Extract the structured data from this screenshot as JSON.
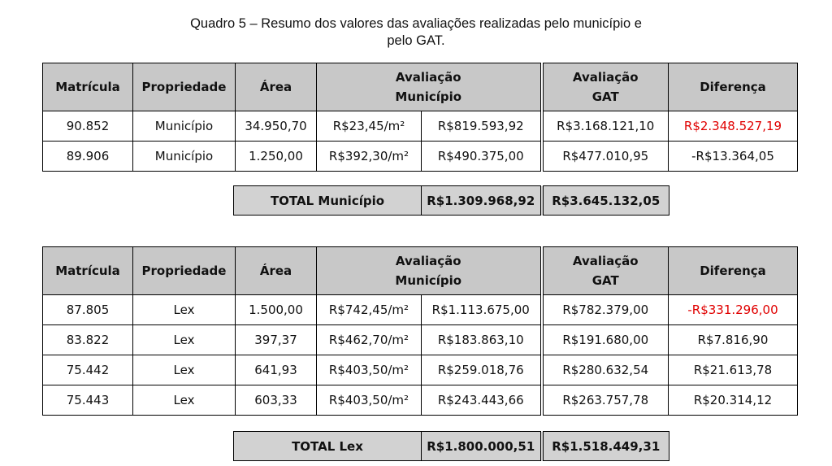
{
  "caption": {
    "line1": "Quadro 5 – Resumo dos valores das avaliações realizadas pelo município e",
    "line2": "pelo GAT."
  },
  "headers": {
    "matricula": "Matrícula",
    "propriedade": "Propriedade",
    "area": "Área",
    "aval_mun_1": "Avaliação",
    "aval_mun_2": "Município",
    "aval_gat_1": "Avaliação",
    "aval_gat_2": "GAT",
    "diferenca": "Diferença"
  },
  "table1": {
    "rows": [
      {
        "matricula": "90.852",
        "propriedade": "Município",
        "area": "34.950,70",
        "valor_m2": "R$23,45/m²",
        "aval_municipio": "R$819.593,92",
        "aval_gat": "R$3.168.121,10",
        "diferenca": "R$2.348.527,19",
        "highlight": true
      },
      {
        "matricula": "89.906",
        "propriedade": "Município",
        "area": "1.250,00",
        "valor_m2": "R$392,30/m²",
        "aval_municipio": "R$490.375,00",
        "aval_gat": "R$477.010,95",
        "diferenca": "-R$13.364,05",
        "highlight": false
      }
    ],
    "total": {
      "label": "TOTAL Município",
      "municipio": "R$1.309.968,92",
      "gat": "R$3.645.132,05"
    }
  },
  "table2": {
    "rows": [
      {
        "matricula": "87.805",
        "propriedade": "Lex",
        "area": "1.500,00",
        "valor_m2": "R$742,45/m²",
        "aval_municipio": "R$1.113.675,00",
        "aval_gat": "R$782.379,00",
        "diferenca": "-R$331.296,00",
        "highlight": true
      },
      {
        "matricula": "83.822",
        "propriedade": "Lex",
        "area": "397,37",
        "valor_m2": "R$462,70/m²",
        "aval_municipio": "R$183.863,10",
        "aval_gat": "R$191.680,00",
        "diferenca": "R$7.816,90",
        "highlight": false
      },
      {
        "matricula": "75.442",
        "propriedade": "Lex",
        "area": "641,93",
        "valor_m2": "R$403,50/m²",
        "aval_municipio": "R$259.018,76",
        "aval_gat": "R$280.632,54",
        "diferenca": "R$21.613,78",
        "highlight": false
      },
      {
        "matricula": "75.443",
        "propriedade": "Lex",
        "area": "603,33",
        "valor_m2": "R$403,50/m²",
        "aval_municipio": "R$243.443,66",
        "aval_gat": "R$263.757,78",
        "diferenca": "R$20.314,12",
        "highlight": false
      }
    ],
    "total": {
      "label": "TOTAL Lex",
      "municipio": "R$1.800.000,51",
      "gat": "R$1.518.449,31"
    }
  },
  "colors": {
    "highlight_text": "#e00000",
    "header_bg": "#c8c8c8"
  }
}
